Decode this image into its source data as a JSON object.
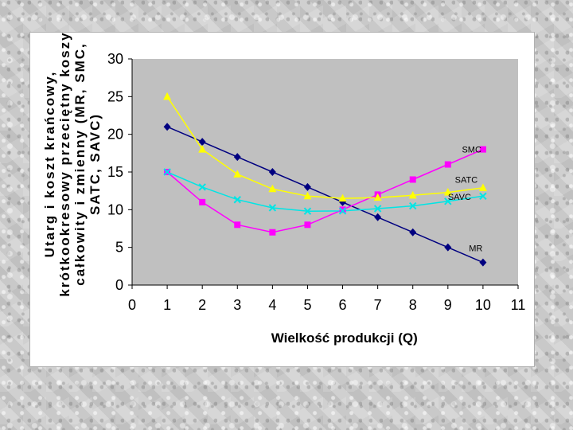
{
  "chart_data": {
    "type": "line",
    "title": "",
    "xlabel": "Wielkość produkcji (Q)",
    "ylabel_lines": [
      "Utarg i koszt krańcowy,",
      "krótkookresowy przeciętny koszy",
      "całkowity i zmienny (MR, SMC,",
      "SATC, SAVC)"
    ],
    "xlim": [
      0,
      11
    ],
    "ylim": [
      0,
      30
    ],
    "xticks": [
      "0",
      "1",
      "2",
      "3",
      "4",
      "5",
      "6",
      "7",
      "8",
      "9",
      "10",
      "11"
    ],
    "yticks": [
      "0",
      "5",
      "10",
      "15",
      "20",
      "25",
      "30"
    ],
    "plot_background": "#c0c0c0",
    "series": [
      {
        "name": "MR",
        "color": "#000080",
        "marker": "diamond",
        "x": [
          1,
          2,
          3,
          4,
          5,
          6,
          7,
          8,
          9,
          10
        ],
        "values": [
          21,
          19,
          17,
          15,
          13,
          11,
          9,
          7,
          5,
          3
        ],
        "label_at": [
          9.6,
          4.5
        ]
      },
      {
        "name": "SMC",
        "color": "#ff00ff",
        "marker": "square",
        "x": [
          1,
          2,
          3,
          4,
          5,
          6,
          7,
          8,
          9,
          10
        ],
        "values": [
          15,
          11,
          8,
          7,
          8,
          10,
          12,
          14,
          16,
          18
        ],
        "label_at": [
          9.4,
          17.6
        ]
      },
      {
        "name": "SATC",
        "color": "#ffff00",
        "marker": "triangle",
        "x": [
          1,
          2,
          3,
          4,
          5,
          6,
          7,
          8,
          9,
          10
        ],
        "values": [
          25,
          18,
          14.7,
          12.75,
          11.8,
          11.5,
          11.6,
          11.9,
          12.3,
          12.9
        ],
        "label_at": [
          9.2,
          13.6
        ]
      },
      {
        "name": "SAVC",
        "color": "#00e5e5",
        "marker": "x",
        "x": [
          1,
          2,
          3,
          4,
          5,
          6,
          7,
          8,
          9,
          10
        ],
        "values": [
          15,
          13,
          11.33,
          10.25,
          9.8,
          9.83,
          10.14,
          10.5,
          11.11,
          11.8
        ],
        "label_at": [
          9.0,
          11.3
        ]
      }
    ]
  }
}
